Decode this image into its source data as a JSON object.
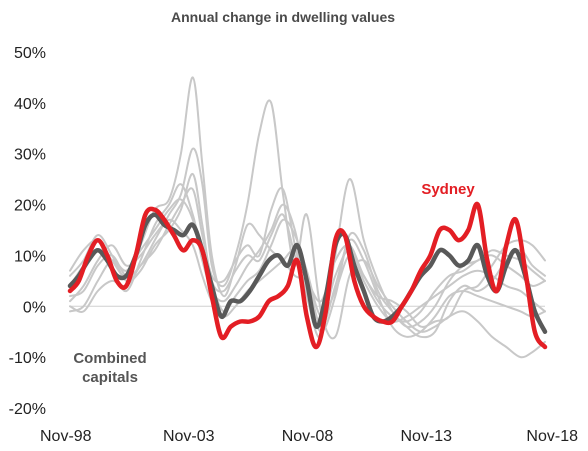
{
  "chart_data": {
    "type": "line",
    "title": "Annual change in dwelling values",
    "ylim": [
      -20,
      50
    ],
    "yticks": [
      -20,
      -10,
      0,
      10,
      20,
      30,
      40,
      50
    ],
    "ytick_labels": [
      "-20%",
      "-10%",
      "0%",
      "10%",
      "20%",
      "30%",
      "40%",
      "50%"
    ],
    "xlim": [
      1998.83,
      2018.83
    ],
    "xticks": [
      1998.83,
      2003.83,
      2008.83,
      2013.83,
      2018.83
    ],
    "xtick_labels": [
      "Nov-98",
      "Nov-03",
      "Nov-08",
      "Nov-13",
      "Nov-18"
    ],
    "colors": {
      "sydney": "#e31e24",
      "combined": "#595959",
      "other": "#c8c8c8"
    },
    "annotations": {
      "sydney": "Sydney",
      "combined_line1": "Combined",
      "combined_line2": "capitals"
    },
    "series": [
      {
        "name": "Sydney",
        "role": "highlight",
        "x": [
          1998.83,
          1999.2,
          1999.6,
          2000.0,
          2000.4,
          2000.8,
          2001.2,
          2001.6,
          2002.0,
          2002.4,
          2002.8,
          2003.2,
          2003.6,
          2004.0,
          2004.4,
          2004.8,
          2005.2,
          2005.6,
          2006.0,
          2006.4,
          2006.8,
          2007.2,
          2007.6,
          2008.0,
          2008.4,
          2008.8,
          2009.2,
          2009.6,
          2010.0,
          2010.4,
          2010.8,
          2011.2,
          2011.6,
          2012.0,
          2012.4,
          2012.8,
          2013.2,
          2013.6,
          2014.0,
          2014.4,
          2014.8,
          2015.2,
          2015.6,
          2016.0,
          2016.4,
          2016.8,
          2017.2,
          2017.6,
          2018.0,
          2018.4,
          2018.83
        ],
        "y": [
          3,
          5,
          10,
          13,
          10,
          5,
          4,
          10,
          18,
          19,
          17,
          14,
          11,
          13,
          11,
          2,
          -6,
          -4,
          -3,
          -3,
          -2,
          1,
          2,
          4,
          9,
          -2,
          -8,
          -1,
          13,
          14,
          5,
          0,
          -2,
          -3,
          -3,
          0,
          3,
          7,
          10,
          15,
          15,
          13,
          15,
          20,
          9,
          3,
          12,
          17,
          7,
          -5,
          -8
        ]
      },
      {
        "name": "Combined capitals",
        "role": "combined",
        "x": [
          1998.83,
          1999.2,
          1999.6,
          2000.0,
          2000.4,
          2000.8,
          2001.2,
          2001.6,
          2002.0,
          2002.4,
          2002.8,
          2003.2,
          2003.6,
          2004.0,
          2004.4,
          2004.8,
          2005.2,
          2005.6,
          2006.0,
          2006.4,
          2006.8,
          2007.2,
          2007.6,
          2008.0,
          2008.4,
          2008.8,
          2009.2,
          2009.6,
          2010.0,
          2010.4,
          2010.8,
          2011.2,
          2011.6,
          2012.0,
          2012.4,
          2012.8,
          2013.2,
          2013.6,
          2014.0,
          2014.4,
          2014.8,
          2015.2,
          2015.6,
          2016.0,
          2016.4,
          2016.8,
          2017.2,
          2017.6,
          2018.0,
          2018.4,
          2018.83
        ],
        "y": [
          4,
          6,
          9,
          11,
          9,
          6,
          6,
          10,
          16,
          18,
          16,
          15,
          14,
          16,
          11,
          4,
          -2,
          1,
          1,
          3,
          6,
          9,
          10,
          8,
          12,
          5,
          -4,
          2,
          12,
          14,
          8,
          3,
          -2,
          -3,
          -2,
          0,
          3,
          6,
          8,
          11,
          10,
          8,
          9,
          12,
          6,
          3,
          8,
          11,
          6,
          -1,
          -5
        ]
      },
      {
        "name": "",
        "role": "other",
        "x": [
          1998.83,
          1999.4,
          2000.0,
          2000.6,
          2001.2,
          2001.8,
          2002.4,
          2003.0,
          2003.5,
          2004.0,
          2004.4,
          2004.8,
          2005.3,
          2005.8,
          2006.3,
          2006.8,
          2007.3,
          2007.8,
          2008.3,
          2008.8,
          2009.4,
          2010.0,
          2010.6,
          2011.2,
          2011.8,
          2012.4,
          2013.0,
          2013.6,
          2014.2,
          2014.8,
          2015.4,
          2016.0,
          2016.6,
          2017.2,
          2017.8,
          2018.3,
          2018.83
        ],
        "y": [
          7,
          11,
          13,
          9,
          6,
          12,
          19,
          21,
          30,
          45,
          28,
          10,
          2,
          8,
          16,
          14,
          11,
          9,
          6,
          5,
          1,
          9,
          12,
          6,
          2,
          1,
          -1,
          -4,
          -3,
          -2,
          3,
          4,
          8,
          12,
          13,
          12,
          9
        ]
      },
      {
        "name": "",
        "role": "other",
        "x": [
          1998.83,
          1999.4,
          2000.0,
          2000.6,
          2001.2,
          2001.8,
          2002.4,
          2003.0,
          2003.5,
          2004.0,
          2004.4,
          2004.8,
          2005.3,
          2005.8,
          2006.3,
          2006.8,
          2007.3,
          2007.8,
          2008.3,
          2008.8,
          2009.4,
          2010.0,
          2010.6,
          2011.2,
          2011.8,
          2012.4,
          2013.0,
          2013.6,
          2014.2,
          2014.8,
          2015.4,
          2016.0,
          2016.6,
          2017.2,
          2017.8,
          2018.3,
          2018.83
        ],
        "y": [
          2,
          3,
          8,
          10,
          6,
          8,
          13,
          18,
          22,
          31,
          24,
          8,
          4,
          10,
          20,
          34,
          40,
          22,
          8,
          18,
          -1,
          -6,
          6,
          9,
          4,
          0,
          -3,
          -5,
          -4,
          -2,
          -1,
          -3,
          -6,
          -8,
          -10,
          -9,
          -7
        ]
      },
      {
        "name": "",
        "role": "other",
        "x": [
          1998.83,
          1999.4,
          2000.0,
          2000.6,
          2001.2,
          2001.8,
          2002.4,
          2003.0,
          2003.5,
          2004.0,
          2004.4,
          2004.8,
          2005.3,
          2005.8,
          2006.3,
          2006.8,
          2007.3,
          2007.8,
          2008.3,
          2008.8,
          2009.4,
          2010.0,
          2010.6,
          2011.2,
          2011.8,
          2012.4,
          2013.0,
          2013.6,
          2014.2,
          2014.8,
          2015.4,
          2016.0,
          2016.6,
          2017.2,
          2017.8,
          2018.3,
          2018.83
        ],
        "y": [
          0,
          -1,
          3,
          5,
          4,
          8,
          11,
          16,
          20,
          23,
          14,
          6,
          5,
          9,
          12,
          10,
          19,
          23,
          12,
          2,
          -6,
          10,
          25,
          13,
          5,
          -1,
          -4,
          -6,
          -5,
          1,
          4,
          3,
          5,
          9,
          11,
          8,
          6
        ]
      },
      {
        "name": "",
        "role": "other",
        "x": [
          1998.83,
          1999.4,
          2000.0,
          2000.6,
          2001.2,
          2001.8,
          2002.4,
          2003.0,
          2003.5,
          2004.0,
          2004.4,
          2004.8,
          2005.3,
          2005.8,
          2006.3,
          2006.8,
          2007.3,
          2007.8,
          2008.3,
          2008.8,
          2009.4,
          2010.0,
          2010.6,
          2011.2,
          2011.8,
          2012.4,
          2013.0,
          2013.6,
          2014.2,
          2014.8,
          2015.4,
          2016.0,
          2016.6,
          2017.2,
          2017.8,
          2018.3,
          2018.83
        ],
        "y": [
          4,
          8,
          11,
          7,
          3,
          9,
          16,
          20,
          24,
          18,
          10,
          4,
          -1,
          2,
          5,
          7,
          12,
          17,
          14,
          7,
          -2,
          3,
          10,
          6,
          1,
          -2,
          -3,
          -1,
          3,
          6,
          7,
          9,
          10,
          8,
          6,
          4,
          5
        ]
      },
      {
        "name": "",
        "role": "other",
        "x": [
          1998.83,
          1999.4,
          2000.0,
          2000.6,
          2001.2,
          2001.8,
          2002.4,
          2003.0,
          2003.5,
          2004.0,
          2004.4,
          2004.8,
          2005.3,
          2005.8,
          2006.3,
          2006.8,
          2007.3,
          2007.8,
          2008.3,
          2008.8,
          2009.4,
          2010.0,
          2010.6,
          2011.2,
          2011.8,
          2012.4,
          2013.0,
          2013.6,
          2014.2,
          2014.8,
          2015.4,
          2016.0,
          2016.6,
          2017.2,
          2017.8,
          2018.3,
          2018.83
        ],
        "y": [
          1,
          4,
          9,
          12,
          8,
          10,
          14,
          17,
          15,
          12,
          6,
          1,
          -2,
          0,
          3,
          5,
          7,
          9,
          11,
          6,
          -4,
          4,
          13,
          9,
          2,
          -4,
          -6,
          -5,
          -2,
          2,
          3,
          2,
          1,
          0,
          -1,
          -2,
          -1
        ]
      },
      {
        "name": "",
        "role": "other",
        "x": [
          1998.83,
          1999.4,
          2000.0,
          2000.6,
          2001.2,
          2001.8,
          2002.4,
          2003.0,
          2003.5,
          2004.0,
          2004.4,
          2004.8,
          2005.3,
          2005.8,
          2006.3,
          2006.8,
          2007.3,
          2007.8,
          2008.3,
          2008.8,
          2009.4,
          2010.0,
          2010.6,
          2011.2,
          2011.8,
          2012.4,
          2013.0,
          2013.6,
          2014.2,
          2014.8,
          2015.4,
          2016.0,
          2016.6,
          2017.2,
          2017.8,
          2018.3,
          2018.83
        ],
        "y": [
          -1,
          0,
          5,
          9,
          7,
          11,
          15,
          19,
          21,
          17,
          9,
          3,
          1,
          4,
          8,
          11,
          15,
          20,
          15,
          4,
          -3,
          6,
          11,
          5,
          0,
          -3,
          -2,
          0,
          2,
          4,
          6,
          7,
          6,
          4,
          3,
          1,
          -1
        ]
      },
      {
        "name": "",
        "role": "other",
        "x": [
          1998.83,
          1999.4,
          2000.0,
          2000.6,
          2001.2,
          2001.8,
          2002.4,
          2003.0,
          2003.5,
          2004.0,
          2004.4,
          2004.8,
          2005.3,
          2005.8,
          2006.3,
          2006.8,
          2007.3,
          2007.8,
          2008.3,
          2008.8,
          2009.4,
          2010.0,
          2010.6,
          2011.2,
          2011.8,
          2012.4,
          2013.0,
          2013.6,
          2014.2,
          2014.8,
          2015.4,
          2016.0,
          2016.6,
          2017.2,
          2017.8,
          2018.3,
          2018.83
        ],
        "y": [
          6,
          9,
          14,
          10,
          5,
          7,
          12,
          15,
          19,
          26,
          16,
          5,
          3,
          7,
          10,
          9,
          14,
          18,
          10,
          3,
          -5,
          2,
          14,
          11,
          3,
          -1,
          -4,
          -3,
          0,
          5,
          8,
          9,
          11,
          10,
          9,
          7,
          5
        ]
      }
    ]
  }
}
